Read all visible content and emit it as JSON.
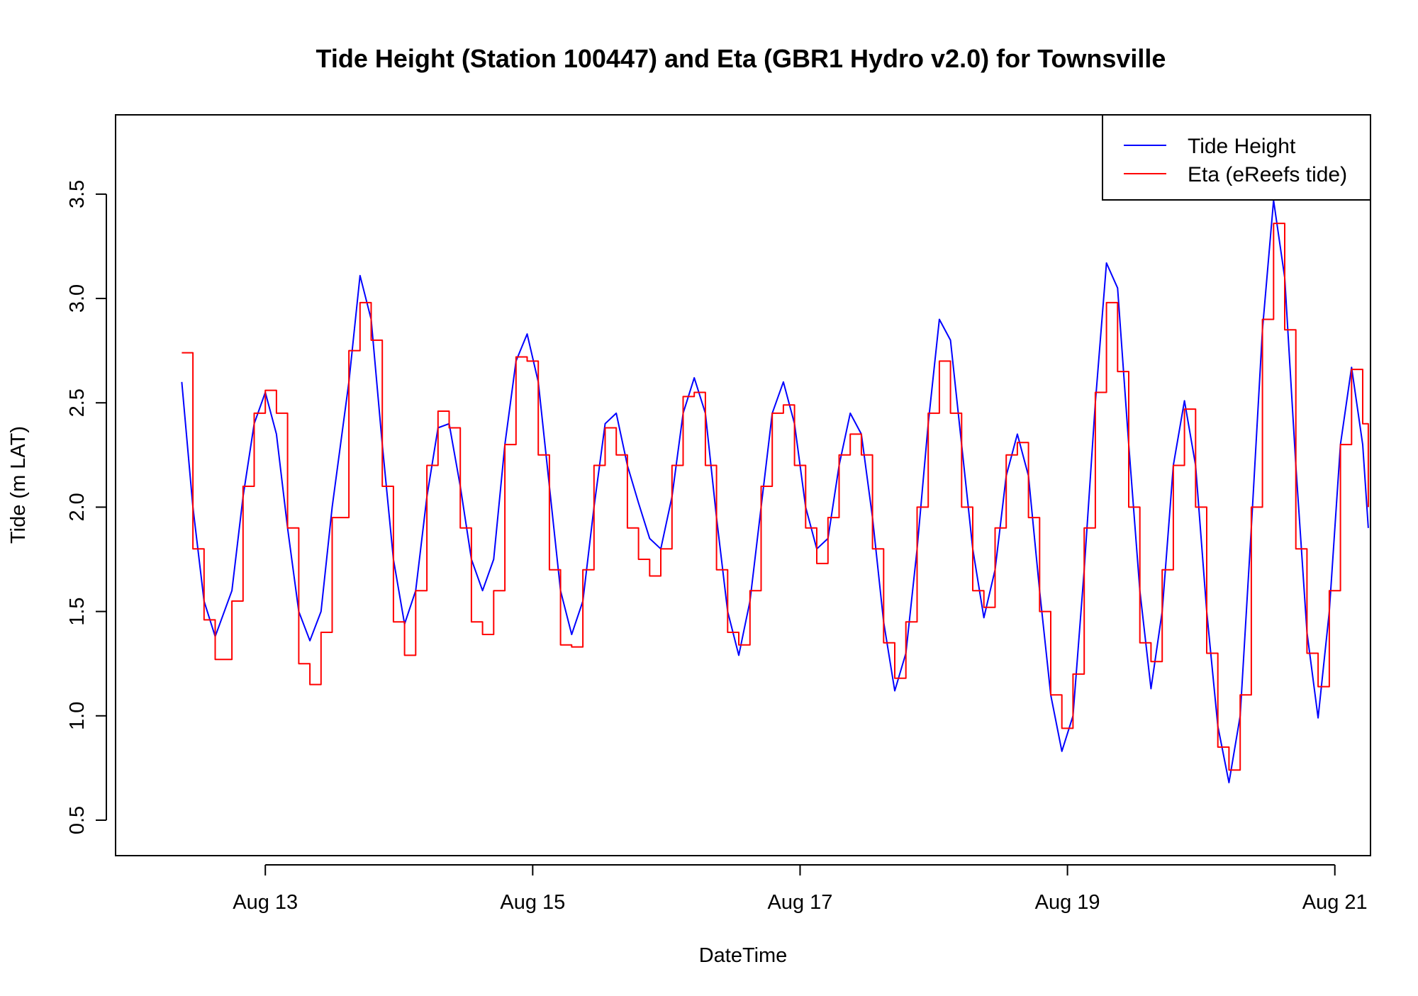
{
  "chart_data": {
    "type": "line",
    "title": "Tide Height (Station 100447) and Eta (GBR1 Hydro v2.0) for Townsville",
    "xlabel": "DateTime",
    "ylabel": "Tide (m LAT)",
    "xlim": [
      "2024-08-11T21:07",
      "2024-08-21T06:24"
    ],
    "ylim": [
      0.33,
      3.88
    ],
    "x_ticks": [
      {
        "x": "2024-08-13T00:00",
        "label": "Aug 13"
      },
      {
        "x": "2024-08-15T00:00",
        "label": "Aug 15"
      },
      {
        "x": "2024-08-17T00:00",
        "label": "Aug 17"
      },
      {
        "x": "2024-08-19T00:00",
        "label": "Aug 19"
      },
      {
        "x": "2024-08-21T00:00",
        "label": "Aug 21"
      }
    ],
    "y_ticks": [
      {
        "y": 0.5,
        "label": "0.5"
      },
      {
        "y": 1.0,
        "label": "1.0"
      },
      {
        "y": 1.5,
        "label": "1.5"
      },
      {
        "y": 2.0,
        "label": "2.0"
      },
      {
        "y": 2.5,
        "label": "2.5"
      },
      {
        "y": 3.0,
        "label": "3.0"
      },
      {
        "y": 3.5,
        "label": "3.5"
      }
    ],
    "grid": false,
    "legend_position": "top-right",
    "series": [
      {
        "name": "Tide Height",
        "color": "#0000ff",
        "step": false,
        "points": [
          [
            "2024-08-12T09:00",
            2.6
          ],
          [
            "2024-08-12T11:00",
            2.0
          ],
          [
            "2024-08-12T13:00",
            1.55
          ],
          [
            "2024-08-12T15:00",
            1.38
          ],
          [
            "2024-08-12T18:00",
            1.6
          ],
          [
            "2024-08-12T20:00",
            2.05
          ],
          [
            "2024-08-12T22:00",
            2.4
          ],
          [
            "2024-08-13T00:00",
            2.55
          ],
          [
            "2024-08-13T02:00",
            2.35
          ],
          [
            "2024-08-13T04:00",
            1.9
          ],
          [
            "2024-08-13T06:00",
            1.5
          ],
          [
            "2024-08-13T08:00",
            1.36
          ],
          [
            "2024-08-13T10:00",
            1.5
          ],
          [
            "2024-08-13T12:00",
            2.0
          ],
          [
            "2024-08-13T15:00",
            2.6
          ],
          [
            "2024-08-13T17:00",
            3.11
          ],
          [
            "2024-08-13T19:00",
            2.9
          ],
          [
            "2024-08-13T21:00",
            2.3
          ],
          [
            "2024-08-13T23:00",
            1.75
          ],
          [
            "2024-08-14T01:00",
            1.44
          ],
          [
            "2024-08-14T03:00",
            1.6
          ],
          [
            "2024-08-14T05:00",
            2.05
          ],
          [
            "2024-08-14T07:00",
            2.38
          ],
          [
            "2024-08-14T09:00",
            2.4
          ],
          [
            "2024-08-14T11:00",
            2.1
          ],
          [
            "2024-08-14T13:00",
            1.75
          ],
          [
            "2024-08-14T15:00",
            1.6
          ],
          [
            "2024-08-14T17:00",
            1.75
          ],
          [
            "2024-08-14T19:00",
            2.3
          ],
          [
            "2024-08-14T21:00",
            2.7
          ],
          [
            "2024-08-14T23:00",
            2.83
          ],
          [
            "2024-08-15T01:00",
            2.6
          ],
          [
            "2024-08-15T03:00",
            2.1
          ],
          [
            "2024-08-15T05:00",
            1.6
          ],
          [
            "2024-08-15T07:00",
            1.39
          ],
          [
            "2024-08-15T09:00",
            1.55
          ],
          [
            "2024-08-15T11:00",
            2.0
          ],
          [
            "2024-08-15T13:00",
            2.4
          ],
          [
            "2024-08-15T15:00",
            2.45
          ],
          [
            "2024-08-15T17:00",
            2.2
          ],
          [
            "2024-08-15T19:00",
            2.02
          ],
          [
            "2024-08-15T21:00",
            1.85
          ],
          [
            "2024-08-15T23:00",
            1.8
          ],
          [
            "2024-08-16T01:00",
            2.05
          ],
          [
            "2024-08-16T03:00",
            2.45
          ],
          [
            "2024-08-16T05:00",
            2.62
          ],
          [
            "2024-08-16T07:00",
            2.45
          ],
          [
            "2024-08-16T09:00",
            1.95
          ],
          [
            "2024-08-16T11:00",
            1.5
          ],
          [
            "2024-08-16T13:00",
            1.29
          ],
          [
            "2024-08-16T15:00",
            1.55
          ],
          [
            "2024-08-16T17:00",
            2.0
          ],
          [
            "2024-08-16T19:00",
            2.45
          ],
          [
            "2024-08-16T21:00",
            2.6
          ],
          [
            "2024-08-16T23:00",
            2.4
          ],
          [
            "2024-08-17T01:00",
            2.0
          ],
          [
            "2024-08-17T03:00",
            1.8
          ],
          [
            "2024-08-17T05:00",
            1.85
          ],
          [
            "2024-08-17T07:00",
            2.2
          ],
          [
            "2024-08-17T09:00",
            2.45
          ],
          [
            "2024-08-17T11:00",
            2.35
          ],
          [
            "2024-08-17T13:00",
            1.95
          ],
          [
            "2024-08-17T15:00",
            1.45
          ],
          [
            "2024-08-17T17:00",
            1.12
          ],
          [
            "2024-08-17T19:00",
            1.3
          ],
          [
            "2024-08-17T21:00",
            1.8
          ],
          [
            "2024-08-17T23:00",
            2.4
          ],
          [
            "2024-08-18T01:00",
            2.9
          ],
          [
            "2024-08-18T03:00",
            2.8
          ],
          [
            "2024-08-18T05:00",
            2.3
          ],
          [
            "2024-08-18T07:00",
            1.8
          ],
          [
            "2024-08-18T09:00",
            1.47
          ],
          [
            "2024-08-18T11:00",
            1.7
          ],
          [
            "2024-08-18T13:00",
            2.15
          ],
          [
            "2024-08-18T15:00",
            2.35
          ],
          [
            "2024-08-18T17:00",
            2.15
          ],
          [
            "2024-08-18T19:00",
            1.6
          ],
          [
            "2024-08-18T21:00",
            1.1
          ],
          [
            "2024-08-18T23:00",
            0.83
          ],
          [
            "2024-08-19T01:00",
            1.0
          ],
          [
            "2024-08-19T03:00",
            1.7
          ],
          [
            "2024-08-19T05:00",
            2.5
          ],
          [
            "2024-08-19T07:00",
            3.17
          ],
          [
            "2024-08-19T09:00",
            3.05
          ],
          [
            "2024-08-19T11:00",
            2.3
          ],
          [
            "2024-08-19T13:00",
            1.6
          ],
          [
            "2024-08-19T15:00",
            1.13
          ],
          [
            "2024-08-19T17:00",
            1.5
          ],
          [
            "2024-08-19T19:00",
            2.2
          ],
          [
            "2024-08-19T21:00",
            2.51
          ],
          [
            "2024-08-19T23:00",
            2.2
          ],
          [
            "2024-08-20T01:00",
            1.5
          ],
          [
            "2024-08-20T03:00",
            0.95
          ],
          [
            "2024-08-20T05:00",
            0.68
          ],
          [
            "2024-08-20T07:00",
            1.0
          ],
          [
            "2024-08-20T09:00",
            1.9
          ],
          [
            "2024-08-20T11:00",
            2.85
          ],
          [
            "2024-08-20T13:00",
            3.47
          ],
          [
            "2024-08-20T15:00",
            3.1
          ],
          [
            "2024-08-20T17:00",
            2.2
          ],
          [
            "2024-08-20T19:00",
            1.4
          ],
          [
            "2024-08-20T21:00",
            0.99
          ],
          [
            "2024-08-20T23:00",
            1.5
          ],
          [
            "2024-08-21T01:00",
            2.3
          ],
          [
            "2024-08-21T03:00",
            2.67
          ],
          [
            "2024-08-21T05:00",
            2.3
          ],
          [
            "2024-08-21T06:00",
            1.9
          ]
        ]
      },
      {
        "name": "Eta (eReefs tide)",
        "color": "#ff0000",
        "step": true,
        "points": [
          [
            "2024-08-12T09:00",
            2.74
          ],
          [
            "2024-08-12T11:00",
            1.8
          ],
          [
            "2024-08-12T13:00",
            1.46
          ],
          [
            "2024-08-12T15:00",
            1.27
          ],
          [
            "2024-08-12T18:00",
            1.55
          ],
          [
            "2024-08-12T20:00",
            2.1
          ],
          [
            "2024-08-12T22:00",
            2.45
          ],
          [
            "2024-08-13T00:00",
            2.56
          ],
          [
            "2024-08-13T02:00",
            2.45
          ],
          [
            "2024-08-13T04:00",
            1.9
          ],
          [
            "2024-08-13T06:00",
            1.25
          ],
          [
            "2024-08-13T08:00",
            1.15
          ],
          [
            "2024-08-13T10:00",
            1.4
          ],
          [
            "2024-08-13T12:00",
            1.95
          ],
          [
            "2024-08-13T15:00",
            2.75
          ],
          [
            "2024-08-13T17:00",
            2.98
          ],
          [
            "2024-08-13T19:00",
            2.8
          ],
          [
            "2024-08-13T21:00",
            2.1
          ],
          [
            "2024-08-13T23:00",
            1.45
          ],
          [
            "2024-08-14T01:00",
            1.29
          ],
          [
            "2024-08-14T03:00",
            1.6
          ],
          [
            "2024-08-14T05:00",
            2.2
          ],
          [
            "2024-08-14T07:00",
            2.46
          ],
          [
            "2024-08-14T09:00",
            2.38
          ],
          [
            "2024-08-14T11:00",
            1.9
          ],
          [
            "2024-08-14T13:00",
            1.45
          ],
          [
            "2024-08-14T15:00",
            1.39
          ],
          [
            "2024-08-14T17:00",
            1.6
          ],
          [
            "2024-08-14T19:00",
            2.3
          ],
          [
            "2024-08-14T21:00",
            2.72
          ],
          [
            "2024-08-14T23:00",
            2.7
          ],
          [
            "2024-08-15T01:00",
            2.25
          ],
          [
            "2024-08-15T03:00",
            1.7
          ],
          [
            "2024-08-15T05:00",
            1.34
          ],
          [
            "2024-08-15T07:00",
            1.33
          ],
          [
            "2024-08-15T09:00",
            1.7
          ],
          [
            "2024-08-15T11:00",
            2.2
          ],
          [
            "2024-08-15T13:00",
            2.38
          ],
          [
            "2024-08-15T15:00",
            2.25
          ],
          [
            "2024-08-15T17:00",
            1.9
          ],
          [
            "2024-08-15T19:00",
            1.75
          ],
          [
            "2024-08-15T21:00",
            1.67
          ],
          [
            "2024-08-15T23:00",
            1.8
          ],
          [
            "2024-08-16T01:00",
            2.2
          ],
          [
            "2024-08-16T03:00",
            2.53
          ],
          [
            "2024-08-16T05:00",
            2.55
          ],
          [
            "2024-08-16T07:00",
            2.2
          ],
          [
            "2024-08-16T09:00",
            1.7
          ],
          [
            "2024-08-16T11:00",
            1.4
          ],
          [
            "2024-08-16T13:00",
            1.34
          ],
          [
            "2024-08-16T15:00",
            1.6
          ],
          [
            "2024-08-16T17:00",
            2.1
          ],
          [
            "2024-08-16T19:00",
            2.45
          ],
          [
            "2024-08-16T21:00",
            2.49
          ],
          [
            "2024-08-16T23:00",
            2.2
          ],
          [
            "2024-08-17T01:00",
            1.9
          ],
          [
            "2024-08-17T03:00",
            1.73
          ],
          [
            "2024-08-17T05:00",
            1.95
          ],
          [
            "2024-08-17T07:00",
            2.25
          ],
          [
            "2024-08-17T09:00",
            2.35
          ],
          [
            "2024-08-17T11:00",
            2.25
          ],
          [
            "2024-08-17T13:00",
            1.8
          ],
          [
            "2024-08-17T15:00",
            1.35
          ],
          [
            "2024-08-17T17:00",
            1.18
          ],
          [
            "2024-08-17T19:00",
            1.45
          ],
          [
            "2024-08-17T21:00",
            2.0
          ],
          [
            "2024-08-17T23:00",
            2.45
          ],
          [
            "2024-08-18T01:00",
            2.7
          ],
          [
            "2024-08-18T03:00",
            2.45
          ],
          [
            "2024-08-18T05:00",
            2.0
          ],
          [
            "2024-08-18T07:00",
            1.6
          ],
          [
            "2024-08-18T09:00",
            1.52
          ],
          [
            "2024-08-18T11:00",
            1.9
          ],
          [
            "2024-08-18T13:00",
            2.25
          ],
          [
            "2024-08-18T15:00",
            2.31
          ],
          [
            "2024-08-18T17:00",
            1.95
          ],
          [
            "2024-08-18T19:00",
            1.5
          ],
          [
            "2024-08-18T21:00",
            1.1
          ],
          [
            "2024-08-18T23:00",
            0.94
          ],
          [
            "2024-08-19T01:00",
            1.2
          ],
          [
            "2024-08-19T03:00",
            1.9
          ],
          [
            "2024-08-19T05:00",
            2.55
          ],
          [
            "2024-08-19T07:00",
            2.98
          ],
          [
            "2024-08-19T09:00",
            2.65
          ],
          [
            "2024-08-19T11:00",
            2.0
          ],
          [
            "2024-08-19T13:00",
            1.35
          ],
          [
            "2024-08-19T15:00",
            1.26
          ],
          [
            "2024-08-19T17:00",
            1.7
          ],
          [
            "2024-08-19T19:00",
            2.2
          ],
          [
            "2024-08-19T21:00",
            2.47
          ],
          [
            "2024-08-19T23:00",
            2.0
          ],
          [
            "2024-08-20T01:00",
            1.3
          ],
          [
            "2024-08-20T03:00",
            0.85
          ],
          [
            "2024-08-20T05:00",
            0.74
          ],
          [
            "2024-08-20T07:00",
            1.1
          ],
          [
            "2024-08-20T09:00",
            2.0
          ],
          [
            "2024-08-20T11:00",
            2.9
          ],
          [
            "2024-08-20T13:00",
            3.36
          ],
          [
            "2024-08-20T15:00",
            2.85
          ],
          [
            "2024-08-20T17:00",
            1.8
          ],
          [
            "2024-08-20T19:00",
            1.3
          ],
          [
            "2024-08-20T21:00",
            1.14
          ],
          [
            "2024-08-20T23:00",
            1.6
          ],
          [
            "2024-08-21T01:00",
            2.3
          ],
          [
            "2024-08-21T03:00",
            2.66
          ],
          [
            "2024-08-21T05:00",
            2.4
          ],
          [
            "2024-08-21T06:00",
            2.0
          ]
        ]
      }
    ]
  }
}
